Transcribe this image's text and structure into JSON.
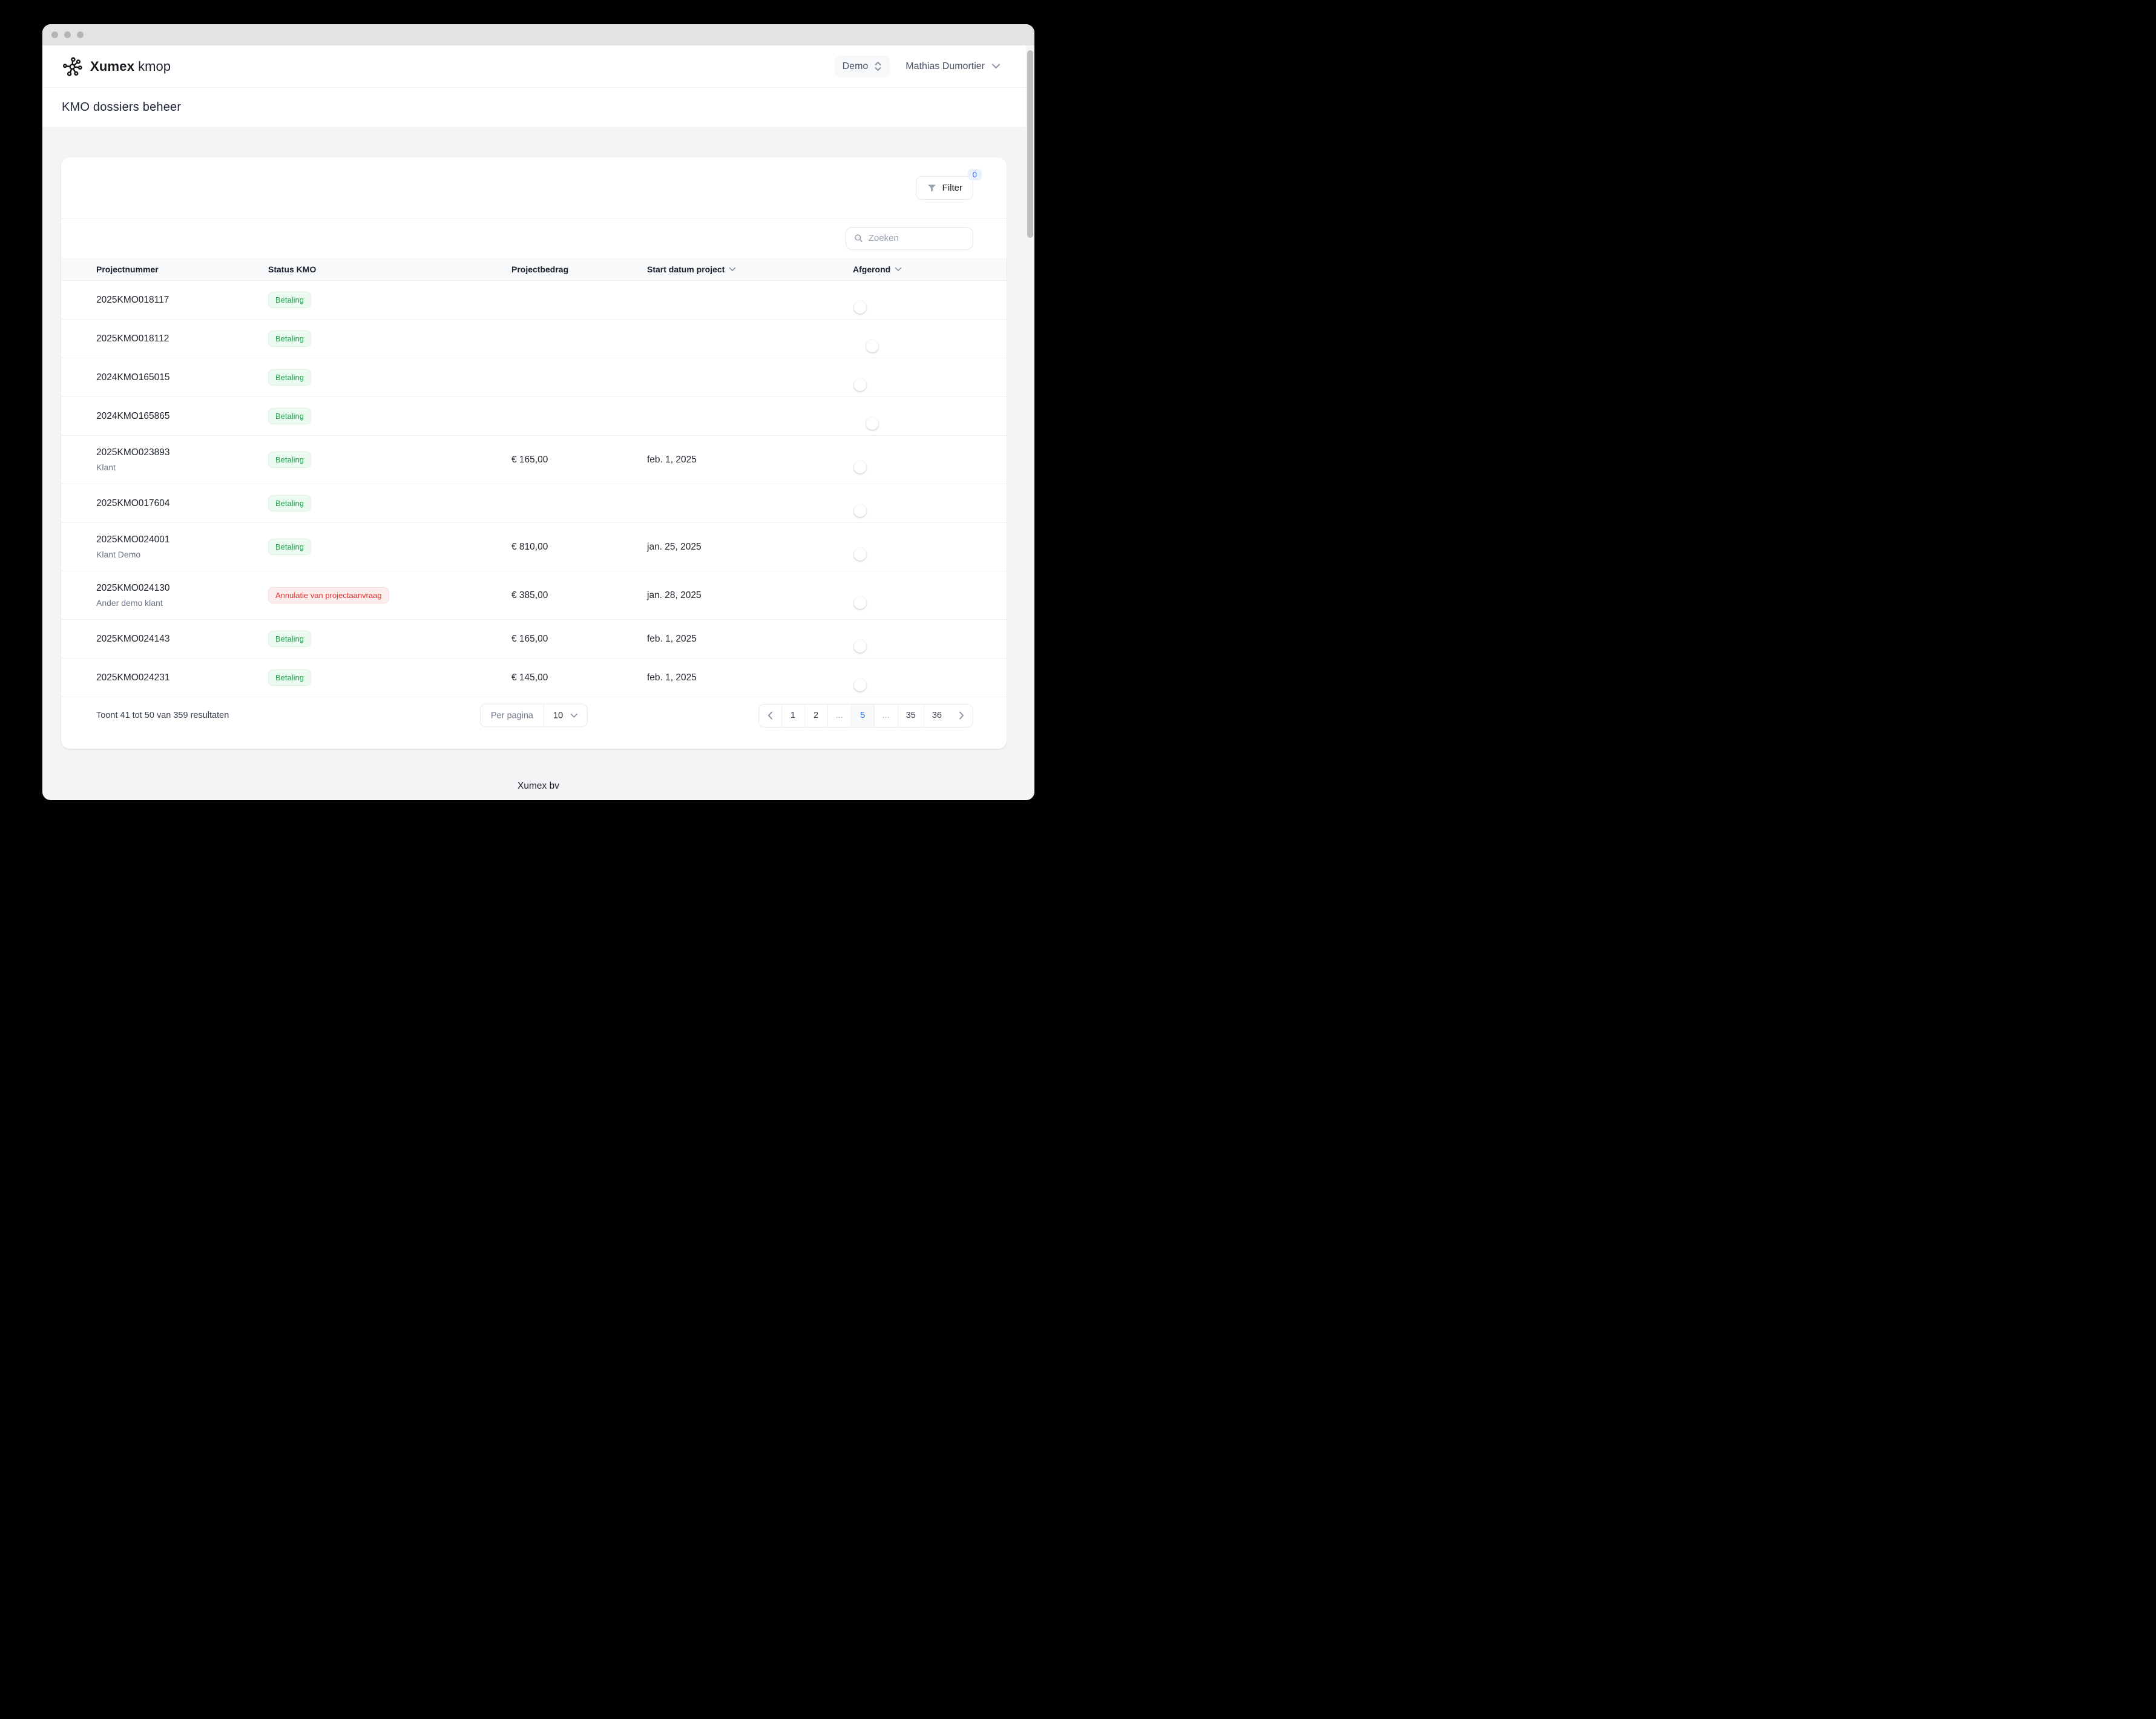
{
  "header": {
    "brand_name": "Xumex",
    "brand_suffix": "kmop",
    "workspace": "Demo",
    "user": "Mathias Dumortier"
  },
  "page": {
    "title": "KMO dossiers beheer"
  },
  "toolbar": {
    "filter_label": "Filter",
    "filter_count": "0"
  },
  "search": {
    "placeholder": "Zoeken"
  },
  "table": {
    "columns": [
      {
        "label": "Projectnummer",
        "sortable": false
      },
      {
        "label": "Status KMO",
        "sortable": false
      },
      {
        "label": "Projectbedrag",
        "sortable": false
      },
      {
        "label": "Start datum project",
        "sortable": true
      },
      {
        "label": "Afgerond",
        "sortable": true
      }
    ],
    "rows": [
      {
        "projectnummer": "2025KMO018117",
        "klant": "",
        "status": "Betaling",
        "status_type": "success",
        "bedrag": "",
        "startdatum": "",
        "afgerond": false
      },
      {
        "projectnummer": "2025KMO018112",
        "klant": "",
        "status": "Betaling",
        "status_type": "success",
        "bedrag": "",
        "startdatum": "",
        "afgerond": true
      },
      {
        "projectnummer": "2024KMO165015",
        "klant": "",
        "status": "Betaling",
        "status_type": "success",
        "bedrag": "",
        "startdatum": "",
        "afgerond": false
      },
      {
        "projectnummer": "2024KMO165865",
        "klant": "",
        "status": "Betaling",
        "status_type": "success",
        "bedrag": "",
        "startdatum": "",
        "afgerond": true
      },
      {
        "projectnummer": "2025KMO023893",
        "klant": "Klant",
        "status": "Betaling",
        "status_type": "success",
        "bedrag": "€ 165,00",
        "startdatum": "feb. 1, 2025",
        "afgerond": false
      },
      {
        "projectnummer": "2025KMO017604",
        "klant": "",
        "status": "Betaling",
        "status_type": "success",
        "bedrag": "",
        "startdatum": "",
        "afgerond": false
      },
      {
        "projectnummer": "2025KMO024001",
        "klant": "Klant Demo",
        "status": "Betaling",
        "status_type": "success",
        "bedrag": "€ 810,00",
        "startdatum": "jan. 25, 2025",
        "afgerond": false
      },
      {
        "projectnummer": "2025KMO024130",
        "klant": "Ander demo klant",
        "status": "Annulatie van projectaanvraag",
        "status_type": "danger",
        "bedrag": "€ 385,00",
        "startdatum": "jan. 28, 2025",
        "afgerond": false
      },
      {
        "projectnummer": "2025KMO024143",
        "klant": "",
        "status": "Betaling",
        "status_type": "success",
        "bedrag": "€ 165,00",
        "startdatum": "feb. 1, 2025",
        "afgerond": false
      },
      {
        "projectnummer": "2025KMO024231",
        "klant": "",
        "status": "Betaling",
        "status_type": "success",
        "bedrag": "€ 145,00",
        "startdatum": "feb. 1, 2025",
        "afgerond": false
      }
    ]
  },
  "pagination": {
    "summary": "Toont 41 tot 50 van 359 resultaten",
    "per_page_label": "Per pagina",
    "per_page_value": "10",
    "pages": [
      "1",
      "2",
      "...",
      "5",
      "...",
      "35",
      "36"
    ],
    "active_page": "5"
  },
  "footer": {
    "company": "Xumex bv"
  },
  "colors": {
    "accent_blue": "#2563eb",
    "success_green": "#1fa24a",
    "danger_red": "#e23333",
    "badge_blue_text": "#3b6ce8"
  }
}
